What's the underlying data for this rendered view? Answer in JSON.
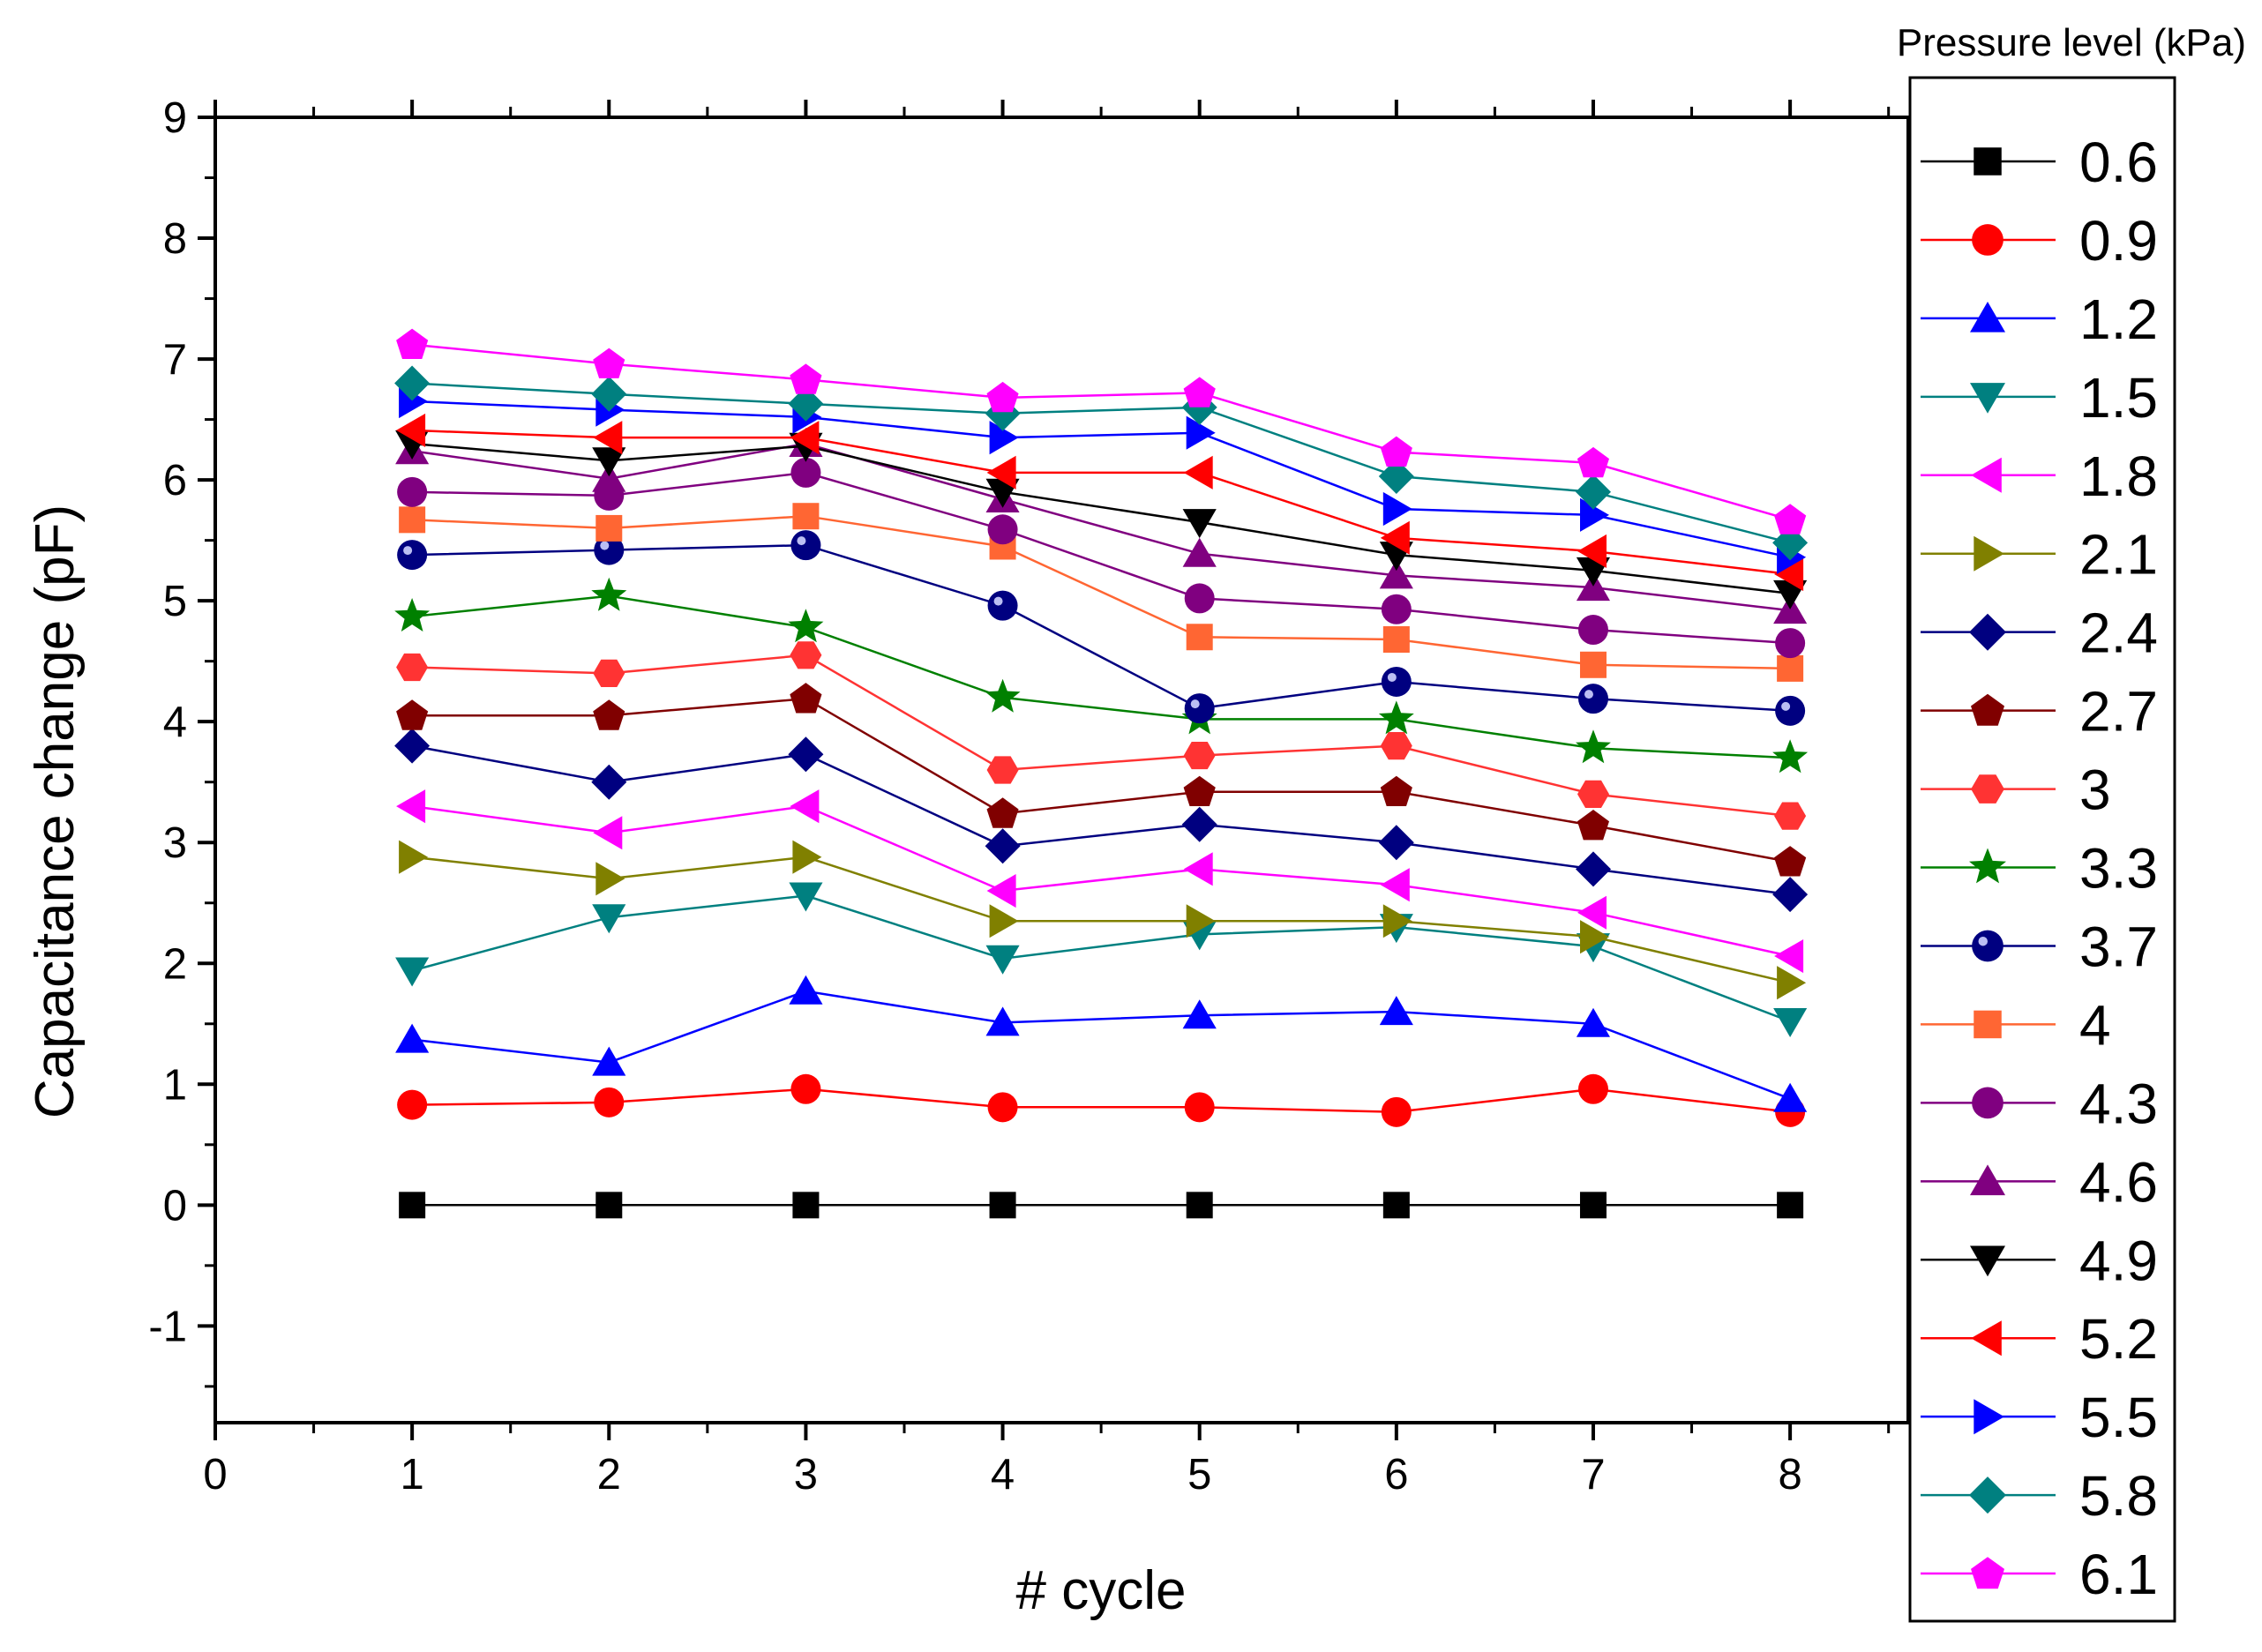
{
  "chart_data": {
    "type": "line",
    "title": "",
    "xlabel": "# cycle",
    "ylabel": "Capacitance change (pF)",
    "xlim": [
      0,
      8.6
    ],
    "ylim": [
      -1.8,
      9
    ],
    "xticks": [
      0,
      1,
      2,
      3,
      4,
      5,
      6,
      7,
      8
    ],
    "yticks": [
      -1,
      0,
      1,
      2,
      3,
      4,
      5,
      6,
      7,
      8,
      9
    ],
    "legend_title": "Pressure level (kPa)",
    "legend_position": "right",
    "x": [
      1,
      2,
      3,
      4,
      5,
      6,
      7,
      8
    ],
    "series": [
      {
        "name": "0.6",
        "color": "#000000",
        "marker": "square",
        "values": [
          0,
          0,
          0,
          0,
          0,
          0,
          0,
          0
        ]
      },
      {
        "name": "0.9",
        "color": "#ff0000",
        "marker": "circle",
        "values": [
          0.83,
          0.85,
          0.96,
          0.81,
          0.81,
          0.77,
          0.96,
          0.77
        ]
      },
      {
        "name": "1.2",
        "color": "#0000ff",
        "marker": "triangle-up",
        "values": [
          1.37,
          1.18,
          1.77,
          1.51,
          1.57,
          1.6,
          1.5,
          0.88
        ]
      },
      {
        "name": "1.5",
        "color": "#008080",
        "marker": "triangle-down",
        "values": [
          1.94,
          2.38,
          2.56,
          2.04,
          2.24,
          2.3,
          2.14,
          1.52
        ]
      },
      {
        "name": "1.8",
        "color": "#ff00ff",
        "marker": "triangle-left",
        "values": [
          3.3,
          3.08,
          3.3,
          2.6,
          2.78,
          2.65,
          2.42,
          2.06
        ]
      },
      {
        "name": "2.1",
        "color": "#808000",
        "marker": "triangle-right",
        "values": [
          2.88,
          2.7,
          2.88,
          2.35,
          2.35,
          2.35,
          2.22,
          1.84
        ]
      },
      {
        "name": "2.4",
        "color": "#000080",
        "marker": "diamond",
        "values": [
          3.8,
          3.5,
          3.73,
          2.97,
          3.15,
          3.0,
          2.78,
          2.57
        ]
      },
      {
        "name": "2.7",
        "color": "#800000",
        "marker": "pentagon",
        "values": [
          4.05,
          4.05,
          4.19,
          3.24,
          3.42,
          3.42,
          3.14,
          2.84
        ]
      },
      {
        "name": "3",
        "color": "#ff3333",
        "marker": "hexagon",
        "values": [
          4.45,
          4.4,
          4.55,
          3.6,
          3.72,
          3.8,
          3.4,
          3.22
        ]
      },
      {
        "name": "3.3",
        "color": "#008000",
        "marker": "star",
        "values": [
          4.87,
          5.04,
          4.78,
          4.2,
          4.02,
          4.02,
          3.78,
          3.7
        ]
      },
      {
        "name": "3.7",
        "color": "#000080",
        "marker": "sphere",
        "values": [
          5.38,
          5.42,
          5.46,
          4.96,
          4.11,
          4.33,
          4.19,
          4.09
        ]
      },
      {
        "name": "4",
        "color": "#ff6633",
        "marker": "square",
        "values": [
          5.67,
          5.6,
          5.7,
          5.45,
          4.7,
          4.68,
          4.47,
          4.44
        ]
      },
      {
        "name": "4.3",
        "color": "#800080",
        "marker": "circle",
        "values": [
          5.9,
          5.87,
          6.06,
          5.59,
          5.02,
          4.93,
          4.76,
          4.65
        ]
      },
      {
        "name": "4.6",
        "color": "#800080",
        "marker": "triangle-up",
        "values": [
          6.24,
          6.01,
          6.3,
          5.84,
          5.39,
          5.21,
          5.11,
          4.92
        ]
      },
      {
        "name": "4.9",
        "color": "#000000",
        "marker": "triangle-down",
        "values": [
          6.3,
          6.16,
          6.28,
          5.9,
          5.65,
          5.38,
          5.25,
          5.06
        ]
      },
      {
        "name": "5.2",
        "color": "#ff0000",
        "marker": "triangle-left",
        "values": [
          6.41,
          6.35,
          6.35,
          6.06,
          6.06,
          5.52,
          5.41,
          5.22
        ]
      },
      {
        "name": "5.5",
        "color": "#0000ff",
        "marker": "triangle-right",
        "values": [
          6.65,
          6.58,
          6.52,
          6.35,
          6.39,
          5.76,
          5.71,
          5.36
        ]
      },
      {
        "name": "5.8",
        "color": "#008080",
        "marker": "diamond",
        "values": [
          6.8,
          6.71,
          6.63,
          6.55,
          6.6,
          6.03,
          5.9,
          5.48
        ]
      },
      {
        "name": "6.1",
        "color": "#ff00ff",
        "marker": "pentagon",
        "values": [
          7.12,
          6.96,
          6.83,
          6.68,
          6.72,
          6.23,
          6.14,
          5.67
        ]
      }
    ]
  }
}
